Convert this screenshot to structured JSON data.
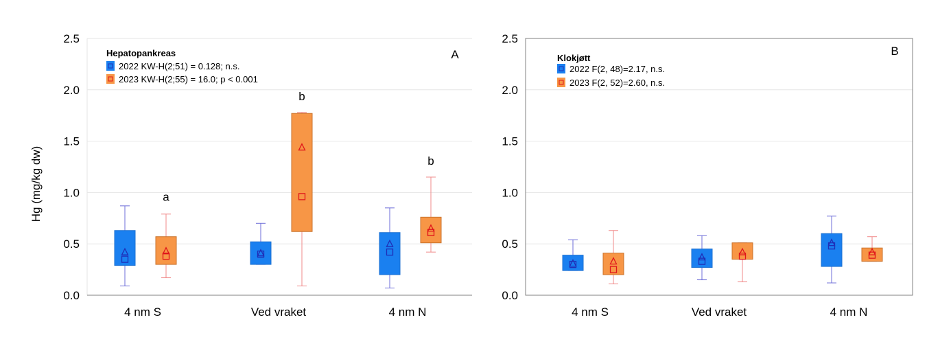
{
  "figure": {
    "ylabel": "Hg (mg/kg dw)",
    "colors": {
      "c2022_fill": "#1a80f0",
      "c2022_line": "#1f2fb8",
      "c2023_fill": "#f79646",
      "c2023_line": "#e0161b",
      "grid": "#e6e6e6",
      "axis": "#808080"
    }
  },
  "chart_data": [
    {
      "type": "box",
      "panel_letter": "A",
      "title": "Hepatopankreas",
      "xlabel": "",
      "ylabel": "Hg (mg/kg dw)",
      "ylim": [
        0,
        2.5
      ],
      "yticks": [
        "0.0",
        "0.5",
        "1.0",
        "1.5",
        "2.0",
        "2.5"
      ],
      "grid": true,
      "categories": [
        "4 nm S",
        "Ved vraket",
        "4 nm N"
      ],
      "legend_position": "top-left",
      "series": [
        {
          "name": "2022",
          "legend_label": "2022  KW-H(2;51) = 0.128; n.s.",
          "boxes": [
            {
              "q1": 0.29,
              "q3": 0.63,
              "min": 0.09,
              "max": 0.87,
              "median": 0.35,
              "mean": 0.42
            },
            {
              "q1": 0.3,
              "q3": 0.52,
              "min": 0.3,
              "max": 0.7,
              "median": 0.4,
              "mean": 0.41
            },
            {
              "q1": 0.2,
              "q3": 0.61,
              "min": 0.07,
              "max": 0.85,
              "median": 0.42,
              "mean": 0.5
            }
          ]
        },
        {
          "name": "2023",
          "legend_label": "2023  KW-H(2;55) = 16.0; p < 0.001",
          "boxes": [
            {
              "q1": 0.3,
              "q3": 0.57,
              "min": 0.17,
              "max": 0.79,
              "median": 0.38,
              "mean": 0.43
            },
            {
              "q1": 0.62,
              "q3": 1.77,
              "min": 0.09,
              "max": 1.78,
              "median": 0.96,
              "mean": 1.44
            },
            {
              "q1": 0.51,
              "q3": 0.76,
              "min": 0.42,
              "max": 1.15,
              "median": 0.61,
              "mean": 0.65
            }
          ]
        }
      ],
      "annotations": [
        {
          "text": "a",
          "category": 0,
          "series": 1,
          "y": 0.92
        },
        {
          "text": "b",
          "category": 1,
          "series": 1,
          "y": 1.9
        },
        {
          "text": "b",
          "category": 2,
          "series": 1,
          "y": 1.27
        }
      ]
    },
    {
      "type": "box",
      "panel_letter": "B",
      "title": "Klokjøtt",
      "xlabel": "",
      "ylabel": "",
      "ylim": [
        0,
        2.5
      ],
      "yticks": [
        "0.0",
        "0.5",
        "1.0",
        "1.5",
        "2.0",
        "2.5"
      ],
      "grid": true,
      "categories": [
        "4 nm S",
        "Ved vraket",
        "4 nm N"
      ],
      "legend_position": "top-left",
      "series": [
        {
          "name": "2022",
          "legend_label": "2022  F(2, 48)=2.17, n.s.",
          "boxes": [
            {
              "q1": 0.24,
              "q3": 0.39,
              "min": 0.24,
              "max": 0.54,
              "median": 0.3,
              "mean": 0.31
            },
            {
              "q1": 0.27,
              "q3": 0.45,
              "min": 0.15,
              "max": 0.58,
              "median": 0.33,
              "mean": 0.37
            },
            {
              "q1": 0.28,
              "q3": 0.6,
              "min": 0.12,
              "max": 0.77,
              "median": 0.48,
              "mean": 0.51
            }
          ]
        },
        {
          "name": "2023",
          "legend_label": "2023  F(2, 52)=2.60, n.s.",
          "boxes": [
            {
              "q1": 0.2,
              "q3": 0.41,
              "min": 0.11,
              "max": 0.63,
              "median": 0.25,
              "mean": 0.33
            },
            {
              "q1": 0.35,
              "q3": 0.51,
              "min": 0.13,
              "max": 0.51,
              "median": 0.38,
              "mean": 0.42
            },
            {
              "q1": 0.33,
              "q3": 0.46,
              "min": 0.33,
              "max": 0.57,
              "median": 0.39,
              "mean": 0.42
            }
          ]
        }
      ],
      "annotations": []
    }
  ]
}
